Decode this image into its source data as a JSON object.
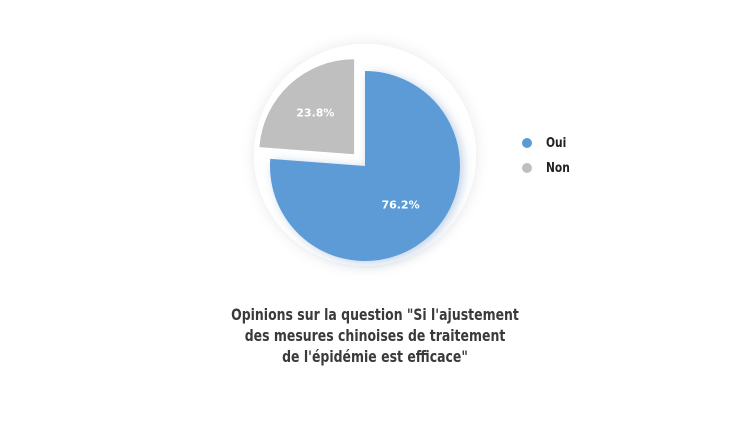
{
  "chart_data": {
    "type": "pie",
    "categories": [
      "Oui",
      "Non"
    ],
    "values": [
      76.2,
      23.8
    ],
    "value_labels": [
      "76.2%",
      "23.8%"
    ],
    "colors": [
      "#5b9bd5",
      "#bfbfbf"
    ],
    "exploded": [
      false,
      true
    ],
    "start_angle": "12 o'clock, clockwise",
    "legend": {
      "position": "right",
      "entries": [
        "Oui",
        "Non"
      ]
    },
    "title": "",
    "caption_lines": [
      "Opinions sur la question \"Si l'ajustement",
      "des mesures chinoises de traitement",
      "de l'épidémie est efficace\""
    ]
  }
}
